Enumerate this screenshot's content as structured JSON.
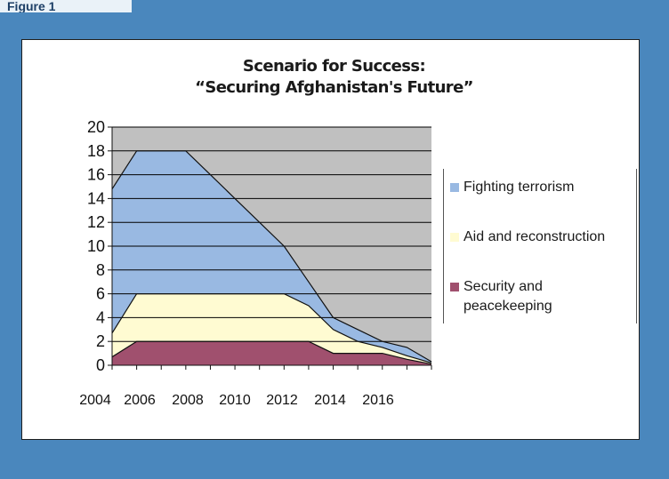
{
  "header": {
    "tab_text": "Figure 1"
  },
  "colors": {
    "plot_background": "#c0c0c0",
    "fighting_terrorism": "#99b9e2",
    "aid_and_reconstruction": "#fffbd2",
    "security_and_peacekeeping": "#a0506e",
    "gridline": "#000000"
  },
  "chart_data": {
    "type": "area",
    "stacked": true,
    "title_lines": [
      "Scenario for Success:",
      "“Securing Afghanistan's Future”"
    ],
    "xlabel": "",
    "ylabel": "",
    "x": [
      2005,
      2006,
      2007,
      2008,
      2009,
      2010,
      2011,
      2012,
      2013,
      2014,
      2015,
      2016,
      2017,
      2018
    ],
    "x_ticks": [
      "2004",
      "2006",
      "2008",
      "2010",
      "2012",
      "2014",
      "2016"
    ],
    "y_ticks": [
      "0",
      "2",
      "4",
      "6",
      "8",
      "10",
      "12",
      "14",
      "16",
      "18",
      "20"
    ],
    "ylim": [
      0,
      20
    ],
    "grid": true,
    "legend_position": "right",
    "series": [
      {
        "name": "Security and peacekeeping",
        "values": [
          0.7,
          2,
          2,
          2,
          2,
          2,
          2,
          2,
          2,
          1,
          1,
          1,
          0.5,
          0.1
        ]
      },
      {
        "name": "Aid and reconstruction",
        "values": [
          2,
          4,
          4,
          4,
          4,
          4,
          4,
          4,
          3,
          2,
          1,
          0.5,
          0.3,
          0.1
        ]
      },
      {
        "name": "Fighting terrorism",
        "values": [
          12.1,
          12,
          12,
          12,
          10,
          8,
          6,
          4,
          2,
          1,
          1,
          0.5,
          0.7,
          0.1
        ]
      }
    ],
    "legend_lines": [
      [
        "Fighting terrorism"
      ],
      [
        "Aid and reconstruction"
      ],
      [
        "Security and",
        "peacekeeping"
      ]
    ]
  }
}
